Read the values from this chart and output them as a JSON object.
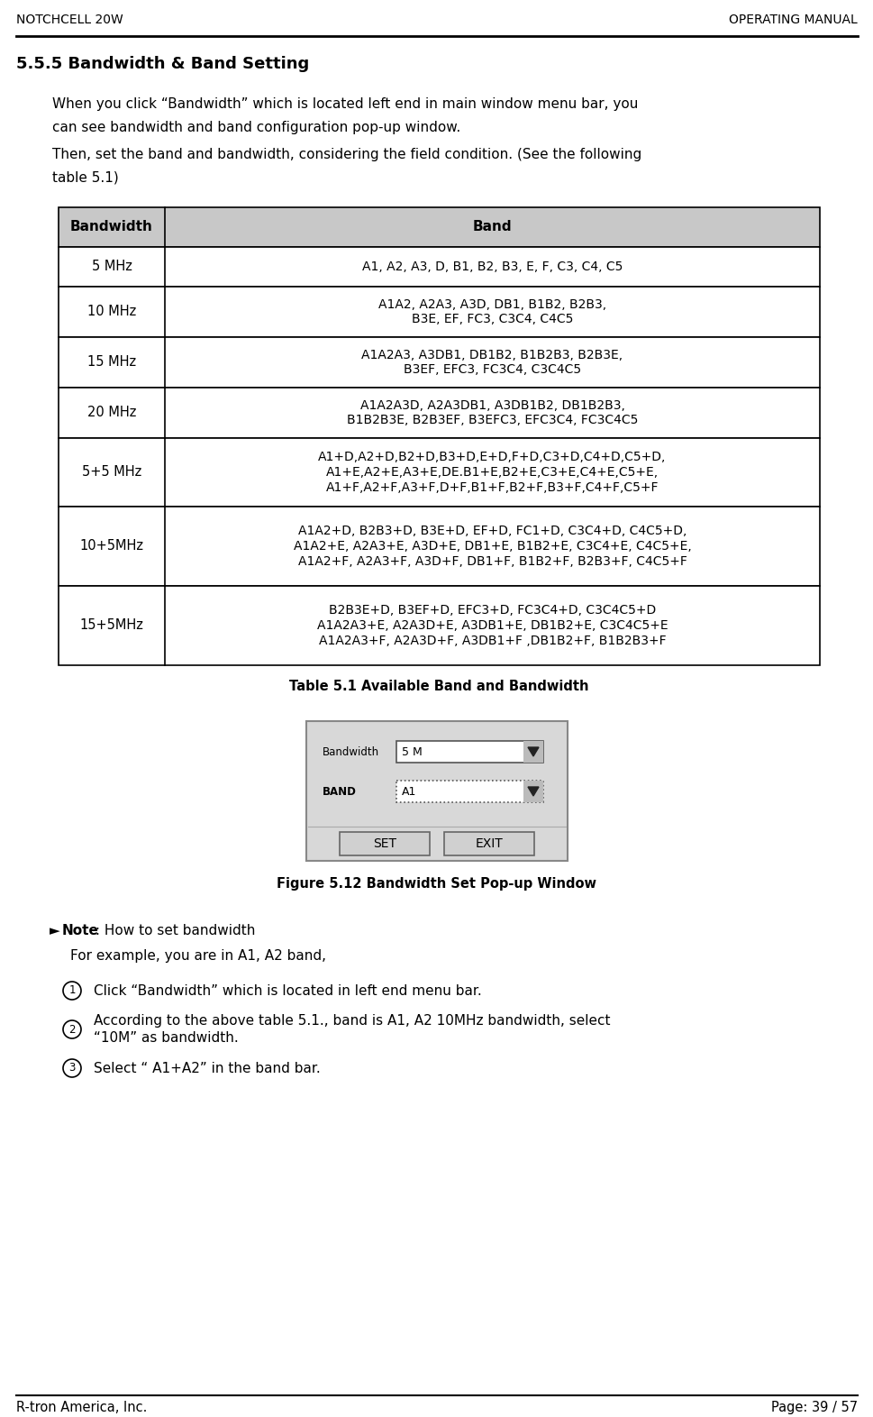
{
  "header_left": "NOTCHCELL 20W",
  "header_right": "OPERATING MANUAL",
  "footer_left": "R-tron America, Inc.",
  "footer_right": "Page: 39 / 57",
  "section_title": "5.5.5 Bandwidth & Band Setting",
  "table_headers": [
    "Bandwidth",
    "Band"
  ],
  "table_rows": [
    [
      "5 MHz",
      "A1, A2, A3, D, B1, B2, B3, E, F, C3, C4, C5"
    ],
    [
      "10 MHz",
      "A1A2, A2A3, A3D, DB1, B1B2, B2B3,\nB3E, EF, FC3, C3C4, C4C5"
    ],
    [
      "15 MHz",
      "A1A2A3, A3DB1, DB1B2, B1B2B3, B2B3E,\nB3EF, EFC3, FC3C4, C3C4C5"
    ],
    [
      "20 MHz",
      "A1A2A3D, A2A3DB1, A3DB1B2, DB1B2B3,\nB1B2B3E, B2B3EF, B3EFC3, EFC3C4, FC3C4C5"
    ],
    [
      "5+5 MHz",
      "A1+D,A2+D,B2+D,B3+D,E+D,F+D,C3+D,C4+D,C5+D,\nA1+E,A2+E,A3+E,DE.B1+E,B2+E,C3+E,C4+E,C5+E,\nA1+F,A2+F,A3+F,D+F,B1+F,B2+F,B3+F,C4+F,C5+F"
    ],
    [
      "10+5MHz",
      "A1A2+D, B2B3+D, B3E+D, EF+D, FC1+D, C3C4+D, C4C5+D,\nA1A2+E, A2A3+E, A3D+E, DB1+E, B1B2+E, C3C4+E, C4C5+E,\nA1A2+F, A2A3+F, A3D+F, DB1+F, B1B2+F, B2B3+F, C4C5+F"
    ],
    [
      "15+5MHz",
      "B2B3E+D, B3EF+D, EFC3+D, FC3C4+D, C3C4C5+D\nA1A2A3+E, A2A3D+E, A3DB1+E, DB1B2+E, C3C4C5+E\nA1A2A3+F, A2A3D+F, A3DB1+F ,DB1B2+F, B1B2B3+F"
    ]
  ],
  "table_caption": "Table 5.1 Available Band and Bandwidth",
  "figure_caption": "Figure 5.12 Bandwidth Set Pop-up Window",
  "note_title": "► Note : How to set bandwidth",
  "note_text": "For example, you are in A1, A2 band,",
  "steps": [
    "Click “Bandwidth” which is located in left end menu bar.",
    "According to the above table 5.1., band is A1, A2 10MHz bandwidth, select\n“10M” as bandwidth.",
    "Select “ A1+A2” in the band bar."
  ],
  "bg_color": "#ffffff",
  "table_header_bg": "#c8c8c8",
  "table_border_color": "#000000",
  "text_color": "#000000"
}
